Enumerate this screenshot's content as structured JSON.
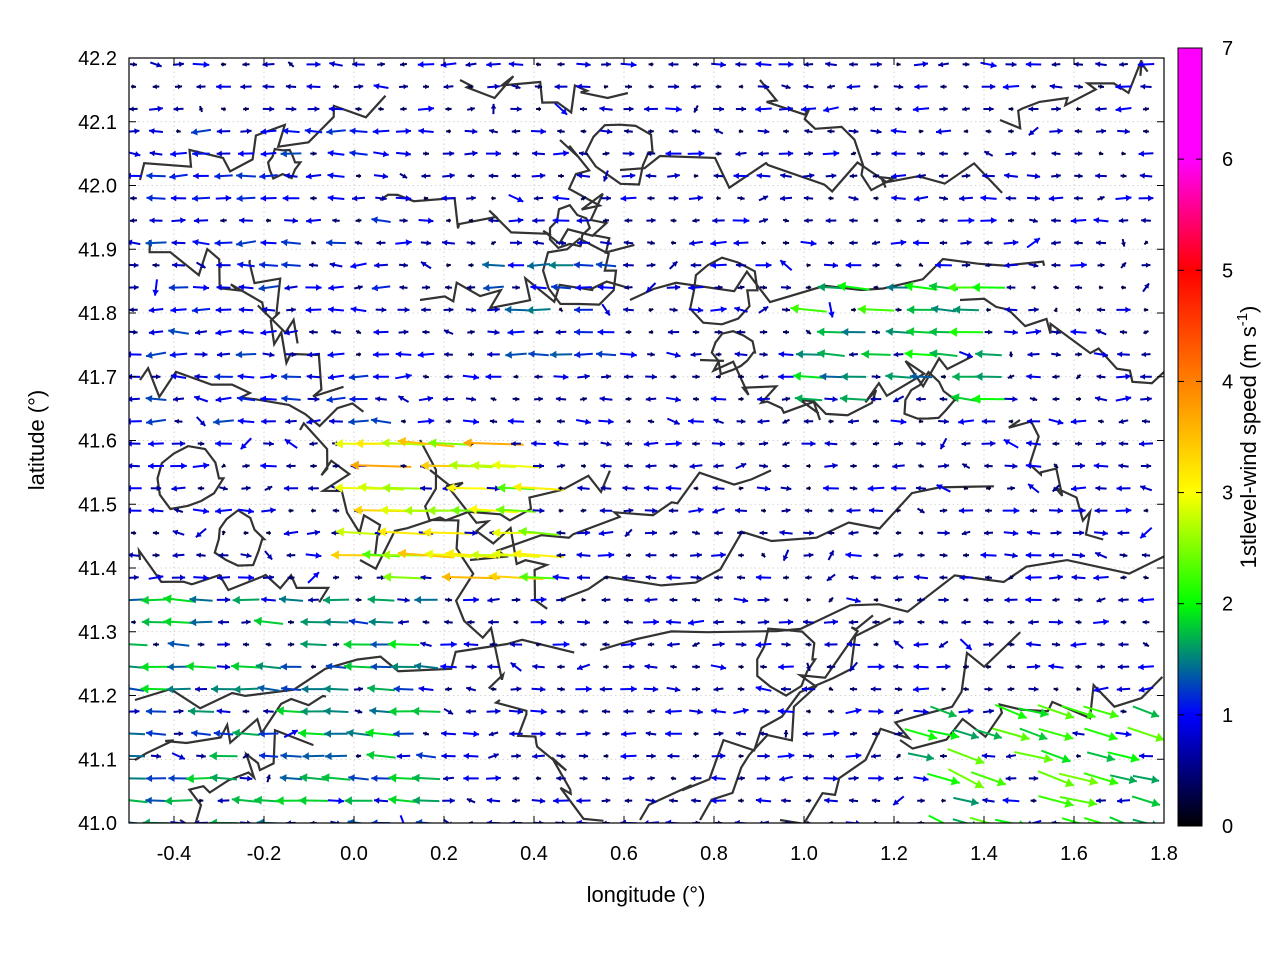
{
  "chart_data": {
    "type": "vector-field",
    "xlabel": "longitude (°)",
    "ylabel": "latitude (°)",
    "xlim": [
      -0.5,
      1.8
    ],
    "ylim": [
      41.0,
      42.2
    ],
    "xticks": [
      "-0.4",
      "-0.2",
      "0.0",
      "0.2",
      "0.4",
      "0.6",
      "0.8",
      "1.0",
      "1.2",
      "1.4",
      "1.6",
      "1.8"
    ],
    "yticks": [
      "41.0",
      "41.1",
      "41.2",
      "41.3",
      "41.4",
      "41.5",
      "41.6",
      "41.7",
      "41.8",
      "41.9",
      "42.0",
      "42.1",
      "42.2"
    ],
    "grid": true,
    "colorbar": {
      "label": "1stlevel-wind speed (m s",
      "label_sup": "-1",
      "label_end": ")",
      "range": [
        0,
        7
      ],
      "ticks": [
        "0",
        "1",
        "2",
        "3",
        "4",
        "5",
        "6",
        "7"
      ],
      "colormap": [
        "#000000",
        "#0000ff",
        "#00ff00",
        "#ffff00",
        "#ff8000",
        "#ff0000",
        "#ff00ff"
      ]
    },
    "wind_regions": [
      {
        "lon": [
          -0.5,
          0.2
        ],
        "lat": [
          41.0,
          41.35
        ],
        "u": -1.2,
        "v": 0.05,
        "speed": 1.8
      },
      {
        "lon": [
          0.0,
          0.45
        ],
        "lat": [
          41.35,
          41.6
        ],
        "u": -2.4,
        "v": 0.1,
        "speed": 3.5
      },
      {
        "lon": [
          1.0,
          1.45
        ],
        "lat": [
          41.65,
          41.85
        ],
        "u": -1.5,
        "v": 0.1,
        "speed": 2.1
      },
      {
        "lon": [
          1.25,
          1.8
        ],
        "lat": [
          41.0,
          41.2
        ],
        "u": 1.3,
        "v": -0.4,
        "speed": 2.4
      },
      {
        "lon": [
          -0.45,
          0.1
        ],
        "lat": [
          41.6,
          42.1
        ],
        "u": -0.6,
        "v": 0.0,
        "speed": 1.2
      },
      {
        "lon": [
          0.3,
          0.6
        ],
        "lat": [
          41.7,
          41.9
        ],
        "u": -0.9,
        "v": 0.0,
        "speed": 1.4
      }
    ]
  }
}
